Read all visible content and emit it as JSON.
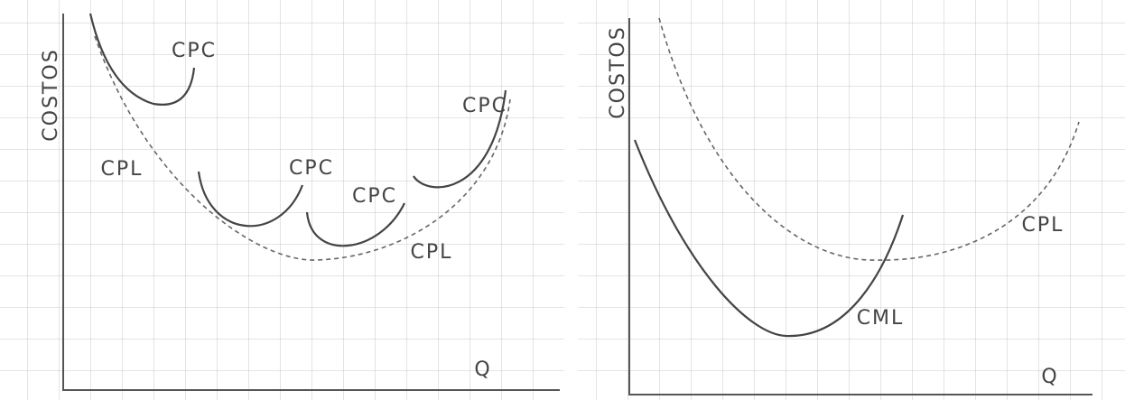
{
  "panels": [
    {
      "y_label": "COSTOS",
      "x_label": "Q",
      "labels": [
        "CPC",
        "CPC",
        "CPC",
        "CPC",
        "CPL",
        "CPL"
      ]
    },
    {
      "y_label": "COSTOS",
      "x_label": "Q",
      "labels": [
        "CPL",
        "CML"
      ]
    }
  ]
}
